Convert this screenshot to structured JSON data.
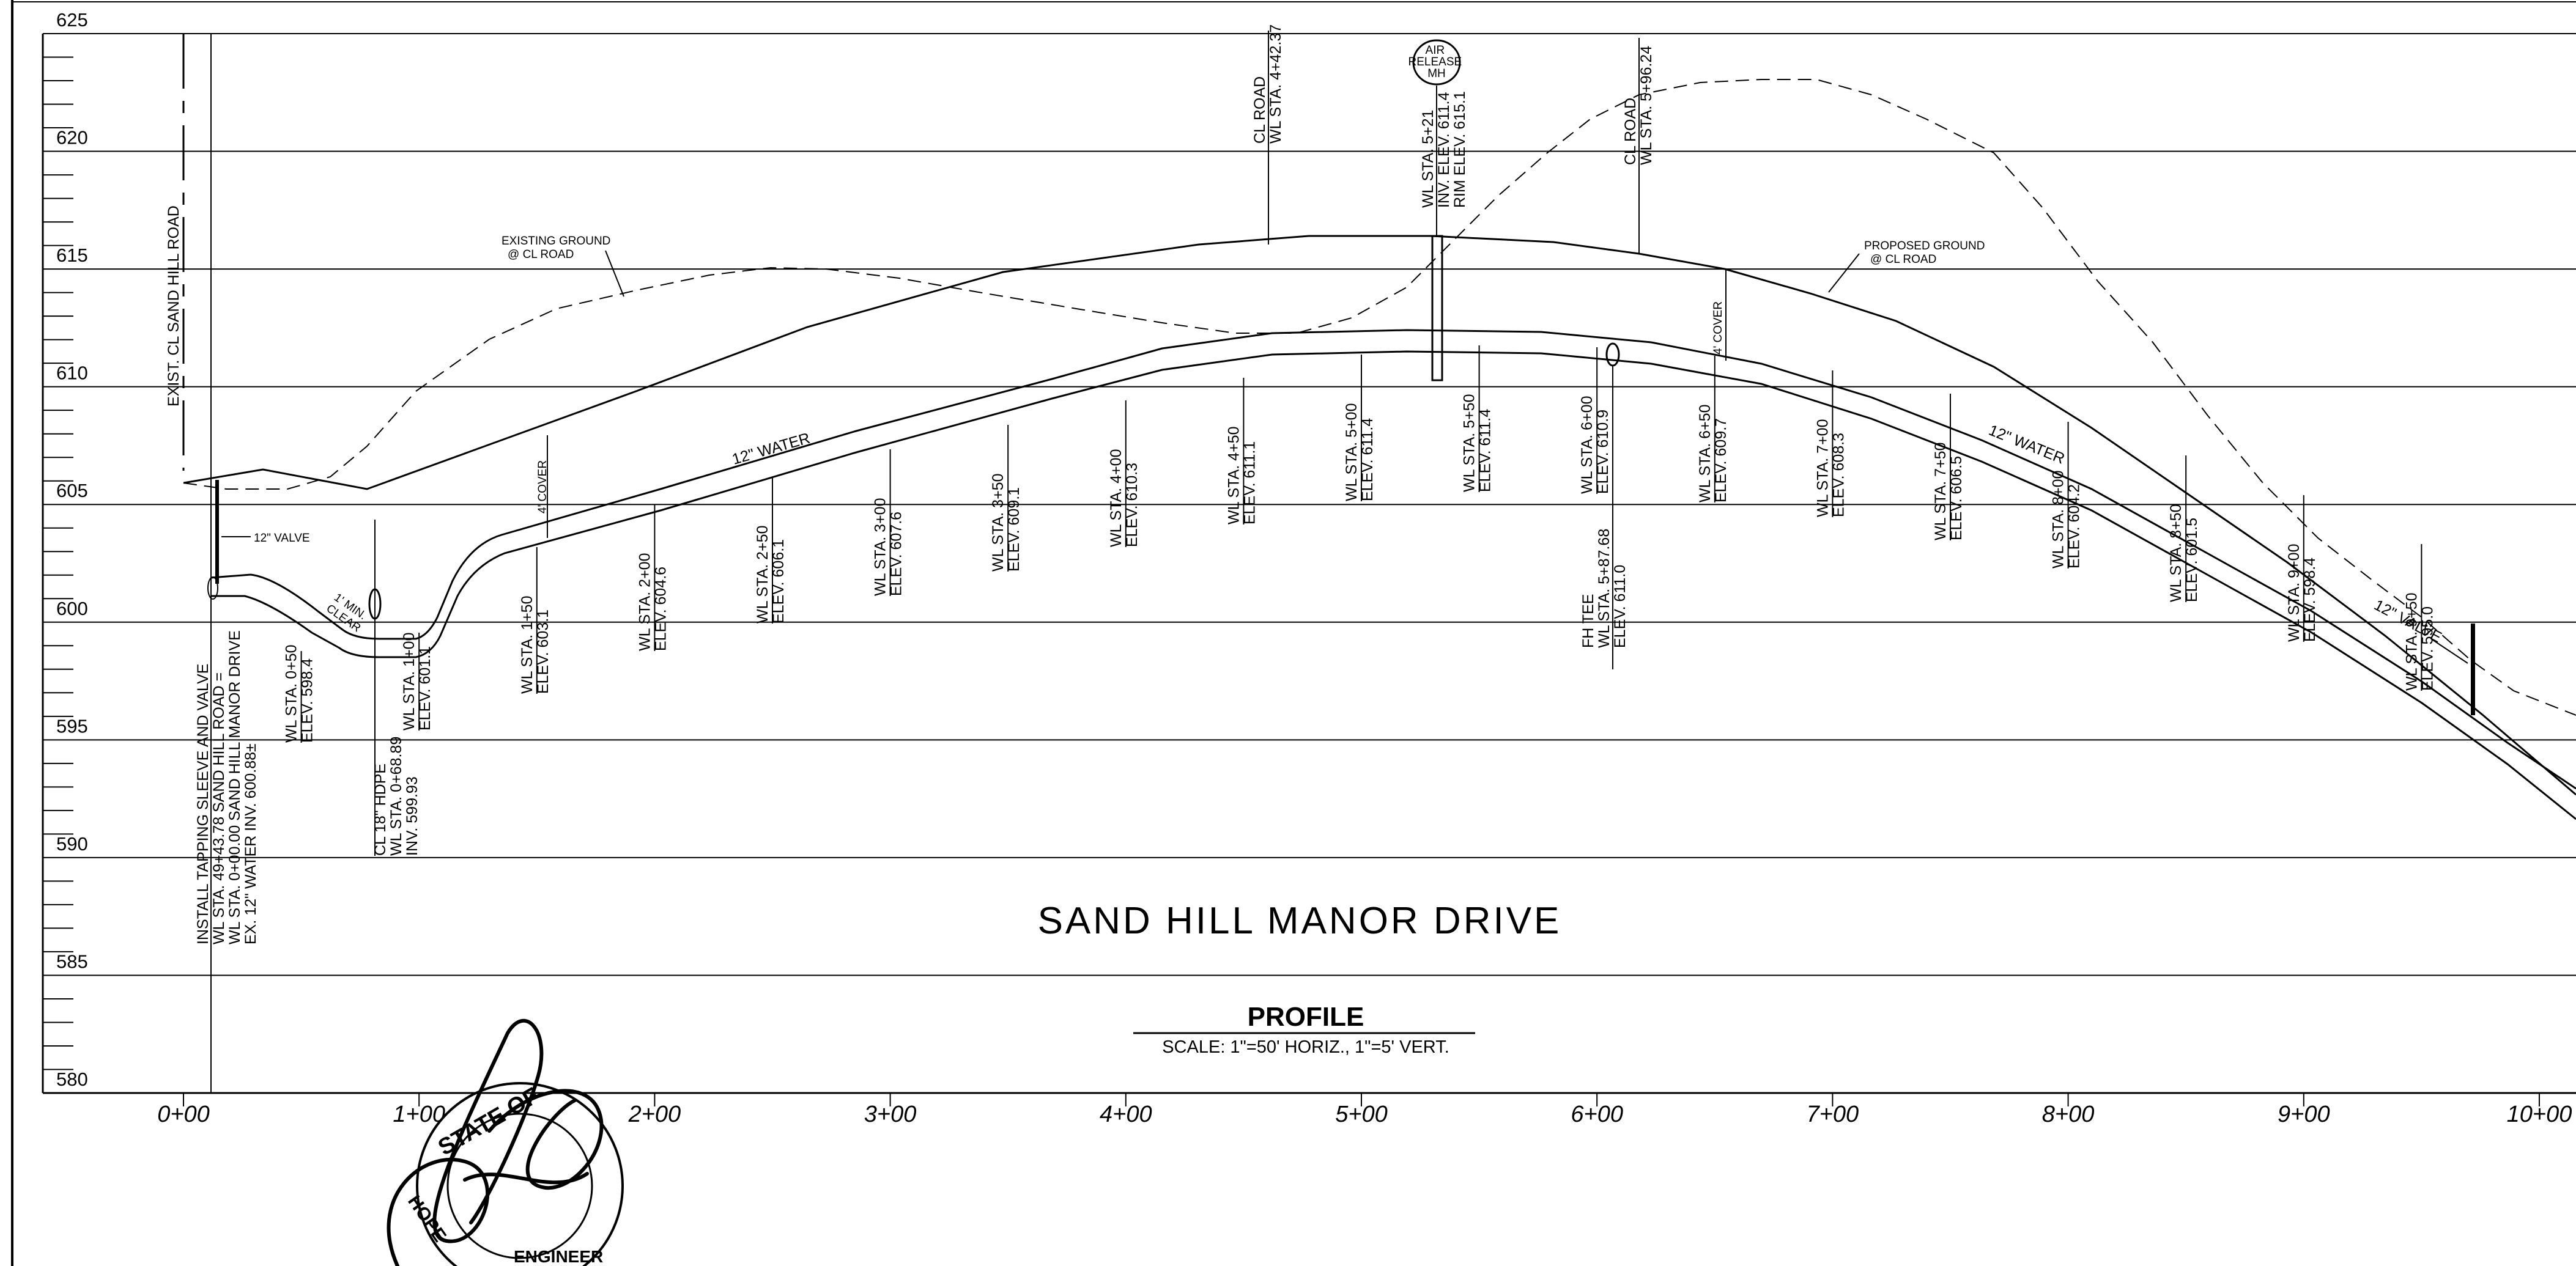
{
  "drawing": {
    "title": "SAND HILL MANOR DRIVE",
    "subtitle": "PROFILE",
    "scale_note": "SCALE: 1\"=50' HORIZ., 1\"=5' VERT."
  },
  "axes": {
    "elevations": [
      "625",
      "620",
      "615",
      "610",
      "605",
      "600",
      "595",
      "590",
      "585",
      "580"
    ],
    "stations": [
      "0+00",
      "1+00",
      "2+00",
      "3+00",
      "4+00",
      "5+00",
      "6+00",
      "7+00",
      "8+00",
      "9+00",
      "10+00"
    ]
  },
  "labels": {
    "exist_cl": "EXIST. CL SAND HILL ROAD",
    "existing_ground": [
      "EXISTING GROUND",
      "@ CL ROAD"
    ],
    "proposed_ground": [
      "PROPOSED GROUND",
      "@ CL ROAD"
    ],
    "water_1": "12\" WATER",
    "water_2": "12\" WATER",
    "valve_left": "12\" VALVE",
    "valve_right": "12\" VALVE",
    "min_clear": [
      "1' MIN.",
      "CLEAR"
    ],
    "cover_1": "4' COVER",
    "cover_2": "4' COVER",
    "air_release": [
      "AIR",
      "RELEASE",
      "MH"
    ],
    "cl_road_1": [
      "CL ROAD",
      "WL STA. 4+42.37"
    ],
    "cl_road_2": [
      "CL ROAD",
      "WL STA. 5+96.24"
    ],
    "air_release_data": [
      "WL STA. 5+21",
      "INV. ELEV. 611.4",
      "RIM ELEV. 615.1"
    ],
    "tapping": [
      "INSTALL TAPPING SLEEVE AND VALVE",
      "WL STA. 49+43.78 SAND HILL ROAD =",
      "WL STA. 0+00.00 SAND HILL MANOR DRIVE",
      "EX. 12\" WATER INV. 600.88±"
    ],
    "hdpe": [
      "CL 18\" HDPE",
      "WL STA. 0+68.89",
      "INV. 599.93"
    ],
    "fh_tee": [
      "FH TEE",
      "WL STA. 5+87.68",
      "ELEV. 611.0"
    ]
  },
  "callouts": [
    {
      "sta": "WL STA. 0+50",
      "elev": "ELEV. 598.4"
    },
    {
      "sta": "WL STA. 1+00",
      "elev": "ELEV. 601.1"
    },
    {
      "sta": "WL STA. 1+50",
      "elev": "ELEV. 603.1"
    },
    {
      "sta": "WL STA. 2+00",
      "elev": "ELEV. 604.6"
    },
    {
      "sta": "WL STA. 2+50",
      "elev": "ELEV. 606.1"
    },
    {
      "sta": "WL STA. 3+00",
      "elev": "ELEV. 607.6"
    },
    {
      "sta": "WL STA. 3+50",
      "elev": "ELEV. 609.1"
    },
    {
      "sta": "WL STA. 4+00",
      "elev": "ELEV. 610.3"
    },
    {
      "sta": "WL STA. 4+50",
      "elev": "ELEV. 611.1"
    },
    {
      "sta": "WL STA. 5+00",
      "elev": "ELEV. 611.4"
    },
    {
      "sta": "WL STA. 5+50",
      "elev": "ELEV. 611.4"
    },
    {
      "sta": "WL STA. 6+00",
      "elev": "ELEV. 610.9"
    },
    {
      "sta": "WL STA. 6+50",
      "elev": "ELEV. 609.7"
    },
    {
      "sta": "WL STA. 7+00",
      "elev": "ELEV. 608.3"
    },
    {
      "sta": "WL STA. 7+50",
      "elev": "ELEV. 606.5"
    },
    {
      "sta": "WL STA. 8+00",
      "elev": "ELEV. 604.2"
    },
    {
      "sta": "WL STA. 8+50",
      "elev": "ELEV. 601.5"
    },
    {
      "sta": "WL STA. 9+00",
      "elev": "ELEV. 598.4"
    },
    {
      "sta": "WL STA. 9+50",
      "elev": "ELEV. 595.0"
    }
  ],
  "stamp": {
    "text": [
      "STATE OF",
      "HOPE",
      "ENGINEER"
    ],
    "kind": "engineer seal with handwritten signature"
  }
}
